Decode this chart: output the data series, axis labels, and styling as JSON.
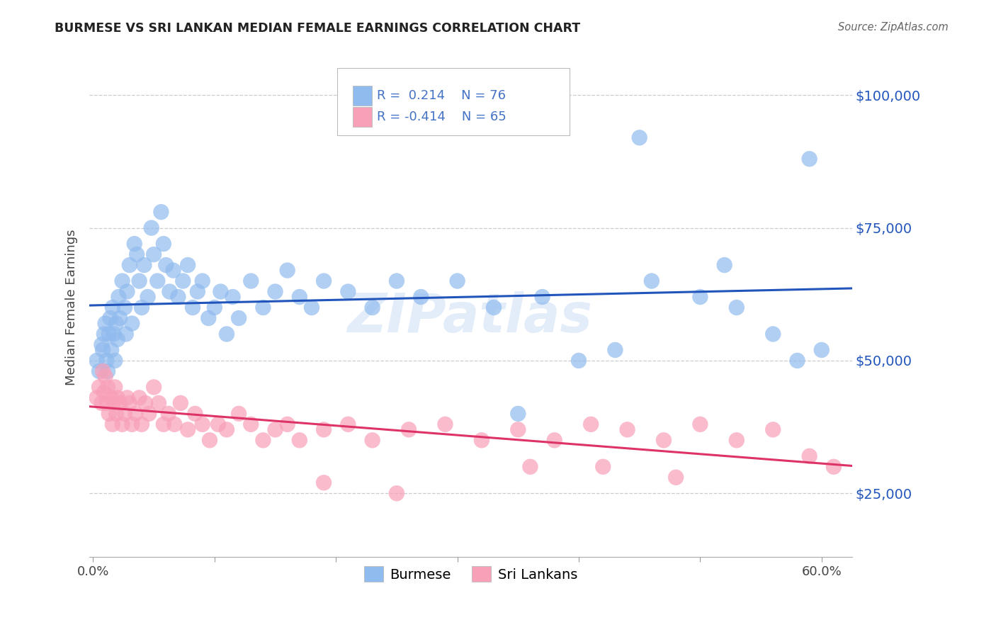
{
  "title": "BURMESE VS SRI LANKAN MEDIAN FEMALE EARNINGS CORRELATION CHART",
  "source": "Source: ZipAtlas.com",
  "ylabel": "Median Female Earnings",
  "ytick_labels": [
    "$25,000",
    "$50,000",
    "$75,000",
    "$100,000"
  ],
  "ytick_values": [
    25000,
    50000,
    75000,
    100000
  ],
  "y_min": 13000,
  "y_max": 107000,
  "x_min": -0.003,
  "x_max": 0.625,
  "burmese_color": "#90bbee",
  "burmese_line_color": "#2255bb",
  "srilanka_color": "#f8a0b8",
  "srilanka_line_color": "#dd3366",
  "burmese_R": 0.214,
  "burmese_N": 76,
  "srilanka_R": -0.414,
  "srilanka_N": 65,
  "watermark": "ZIPatlas",
  "legend_R_color": "#4472c4",
  "burmese_x": [
    0.003,
    0.005,
    0.007,
    0.008,
    0.009,
    0.01,
    0.011,
    0.012,
    0.013,
    0.014,
    0.015,
    0.016,
    0.017,
    0.018,
    0.019,
    0.02,
    0.021,
    0.022,
    0.024,
    0.026,
    0.027,
    0.028,
    0.03,
    0.032,
    0.034,
    0.036,
    0.038,
    0.04,
    0.042,
    0.045,
    0.048,
    0.05,
    0.053,
    0.056,
    0.058,
    0.06,
    0.063,
    0.066,
    0.07,
    0.074,
    0.078,
    0.082,
    0.086,
    0.09,
    0.095,
    0.1,
    0.105,
    0.11,
    0.115,
    0.12,
    0.13,
    0.14,
    0.15,
    0.16,
    0.17,
    0.18,
    0.19,
    0.21,
    0.23,
    0.25,
    0.27,
    0.3,
    0.33,
    0.37,
    0.4,
    0.43,
    0.46,
    0.5,
    0.53,
    0.56,
    0.58,
    0.6,
    0.59,
    0.52,
    0.45,
    0.35
  ],
  "burmese_y": [
    50000,
    48000,
    53000,
    52000,
    55000,
    57000,
    50000,
    48000,
    55000,
    58000,
    52000,
    60000,
    55000,
    50000,
    57000,
    54000,
    62000,
    58000,
    65000,
    60000,
    55000,
    63000,
    68000,
    57000,
    72000,
    70000,
    65000,
    60000,
    68000,
    62000,
    75000,
    70000,
    65000,
    78000,
    72000,
    68000,
    63000,
    67000,
    62000,
    65000,
    68000,
    60000,
    63000,
    65000,
    58000,
    60000,
    63000,
    55000,
    62000,
    58000,
    65000,
    60000,
    63000,
    67000,
    62000,
    60000,
    65000,
    63000,
    60000,
    65000,
    62000,
    65000,
    60000,
    62000,
    50000,
    52000,
    65000,
    62000,
    60000,
    55000,
    50000,
    52000,
    88000,
    68000,
    92000,
    40000
  ],
  "srilanka_x": [
    0.003,
    0.005,
    0.007,
    0.008,
    0.009,
    0.01,
    0.011,
    0.012,
    0.013,
    0.015,
    0.016,
    0.017,
    0.018,
    0.019,
    0.02,
    0.022,
    0.024,
    0.026,
    0.028,
    0.03,
    0.032,
    0.035,
    0.038,
    0.04,
    0.043,
    0.046,
    0.05,
    0.054,
    0.058,
    0.062,
    0.067,
    0.072,
    0.078,
    0.084,
    0.09,
    0.096,
    0.103,
    0.11,
    0.12,
    0.13,
    0.14,
    0.15,
    0.16,
    0.17,
    0.19,
    0.21,
    0.23,
    0.26,
    0.29,
    0.32,
    0.35,
    0.38,
    0.41,
    0.44,
    0.47,
    0.5,
    0.53,
    0.56,
    0.59,
    0.61,
    0.48,
    0.36,
    0.25,
    0.19,
    0.42
  ],
  "srilanka_y": [
    43000,
    45000,
    42000,
    48000,
    44000,
    47000,
    42000,
    45000,
    40000,
    43000,
    38000,
    42000,
    45000,
    40000,
    43000,
    42000,
    38000,
    40000,
    43000,
    42000,
    38000,
    40000,
    43000,
    38000,
    42000,
    40000,
    45000,
    42000,
    38000,
    40000,
    38000,
    42000,
    37000,
    40000,
    38000,
    35000,
    38000,
    37000,
    40000,
    38000,
    35000,
    37000,
    38000,
    35000,
    37000,
    38000,
    35000,
    37000,
    38000,
    35000,
    37000,
    35000,
    38000,
    37000,
    35000,
    38000,
    35000,
    37000,
    32000,
    30000,
    28000,
    30000,
    25000,
    27000,
    30000
  ]
}
